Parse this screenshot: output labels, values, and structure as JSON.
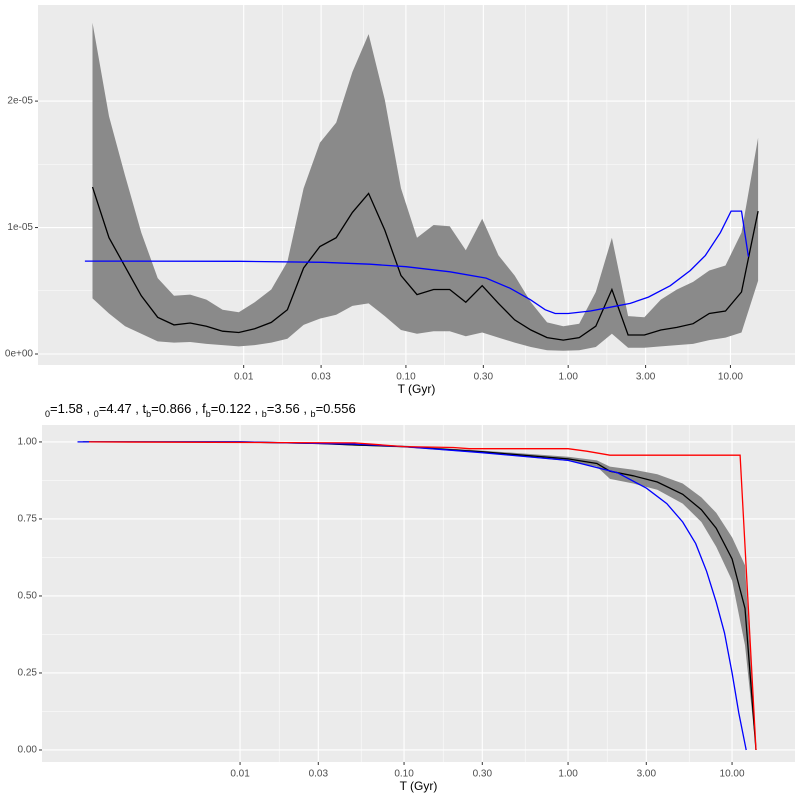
{
  "chart_data": [
    {
      "type": "line",
      "xscale": "log",
      "xlabel": "T (Gyr)",
      "xlim": [
        0.00054,
        25
      ],
      "ylim": [
        -8.7e-07,
        2.76e-05
      ],
      "xticks": [
        0.01,
        0.03,
        {
          "value": 0.1,
          "label": "0.10"
        },
        {
          "value": 0.3,
          "label": "0.30"
        },
        {
          "value": 1,
          "label": "1.00"
        },
        {
          "value": 3,
          "label": "3.00"
        },
        {
          "value": 10,
          "label": "10.00"
        }
      ],
      "yticks": [
        {
          "value": 0,
          "label": "0e+00"
        },
        {
          "value": 1e-05,
          "label": "1e-05"
        },
        {
          "value": 2e-05,
          "label": "2e-05"
        }
      ],
      "grid": true,
      "band": {
        "color": "#8a8a8a",
        "x": [
          0.00117,
          0.00148,
          0.00186,
          0.00234,
          0.00295,
          0.00372,
          0.00468,
          0.00589,
          0.00741,
          0.00933,
          0.0117,
          0.0148,
          0.0186,
          0.0234,
          0.0295,
          0.0372,
          0.0468,
          0.0589,
          0.0741,
          0.0933,
          0.117,
          0.148,
          0.186,
          0.234,
          0.295,
          0.372,
          0.468,
          0.589,
          0.741,
          0.933,
          1.17,
          1.48,
          1.86,
          2.34,
          2.95,
          3.72,
          4.68,
          5.89,
          7.41,
          9.33,
          11.7,
          14.8
        ],
        "lower": [
          4.4e-06,
          3.2e-06,
          2.2e-06,
          1.6e-06,
          1e-06,
          9e-07,
          9.5e-07,
          8e-07,
          7e-07,
          6e-07,
          7e-07,
          9e-07,
          1.2e-06,
          2.3e-06,
          2.8e-06,
          3.1e-06,
          3.8e-06,
          4e-06,
          3e-06,
          1.9e-06,
          1.6e-06,
          1.8e-06,
          1.8e-06,
          1.4e-06,
          1.7e-06,
          1.3e-06,
          9e-07,
          5.5e-07,
          3e-07,
          2.5e-07,
          3e-07,
          5.5e-07,
          1.6e-06,
          5e-07,
          5e-07,
          6e-07,
          7e-07,
          8e-07,
          1.1e-06,
          1.3e-06,
          1.7e-06,
          5.8e-06
        ],
        "upper": [
          2.62e-05,
          1.88e-05,
          1.41e-05,
          9.6e-06,
          6e-06,
          4.6e-06,
          4.7e-06,
          4.3e-06,
          3.5e-06,
          3.3e-06,
          4.1e-06,
          5.1e-06,
          7.3e-06,
          1.31e-05,
          1.67e-05,
          1.83e-05,
          2.23e-05,
          2.53e-05,
          2.01e-05,
          1.31e-05,
          9.2e-06,
          1.02e-05,
          1.01e-05,
          8.2e-06,
          1.07e-05,
          7.8e-06,
          6.2e-06,
          4.1e-06,
          2.5e-06,
          2.2e-06,
          2.4e-06,
          4.9e-06,
          9.2e-06,
          3e-06,
          2.9e-06,
          4.3e-06,
          5.1e-06,
          5.7e-06,
          6.6e-06,
          7e-06,
          9.6e-06,
          1.71e-05
        ]
      },
      "series": [
        {
          "color": "#000000",
          "x": [
            0.00117,
            0.00148,
            0.00186,
            0.00234,
            0.00295,
            0.00372,
            0.00468,
            0.00589,
            0.00741,
            0.00933,
            0.0117,
            0.0148,
            0.0186,
            0.0234,
            0.0295,
            0.0372,
            0.0468,
            0.0589,
            0.0741,
            0.0933,
            0.117,
            0.148,
            0.186,
            0.234,
            0.295,
            0.372,
            0.468,
            0.589,
            0.741,
            0.933,
            1.17,
            1.48,
            1.86,
            2.34,
            2.95,
            3.72,
            4.68,
            5.89,
            7.41,
            9.33,
            11.7,
            14.8
          ],
          "values": [
            1.32e-05,
            9.2e-06,
            6.9e-06,
            4.6e-06,
            2.9e-06,
            2.3e-06,
            2.45e-06,
            2.2e-06,
            1.8e-06,
            1.7e-06,
            2e-06,
            2.5e-06,
            3.5e-06,
            6.8e-06,
            8.5e-06,
            9.2e-06,
            1.12e-05,
            1.27e-05,
            9.8e-06,
            6.2e-06,
            4.7e-06,
            5.1e-06,
            5.1e-06,
            4.1e-06,
            5.4e-06,
            4e-06,
            2.7e-06,
            1.9e-06,
            1.3e-06,
            1.1e-06,
            1.3e-06,
            2.2e-06,
            5.1e-06,
            1.5e-06,
            1.5e-06,
            1.9e-06,
            2.1e-06,
            2.4e-06,
            3.2e-06,
            3.4e-06,
            4.9e-06,
            1.13e-05
          ]
        },
        {
          "color": "#0000ff",
          "x": [
            0.00105,
            0.00944,
            0.0308,
            0.06,
            0.1,
            0.187,
            0.312,
            0.438,
            0.583,
            0.721,
            0.832,
            1,
            1.37,
            1.82,
            2.41,
            3.12,
            4.26,
            5.66,
            7.01,
            8.67,
            10.1,
            11.7,
            12.9
          ],
          "values": [
            7.35e-06,
            7.33e-06,
            7.25e-06,
            7.1e-06,
            6.9e-06,
            6.5e-06,
            6e-06,
            5.2e-06,
            4.3e-06,
            3.5e-06,
            3.2e-06,
            3.2e-06,
            3.4e-06,
            3.7e-06,
            4e-06,
            4.5e-06,
            5.4e-06,
            6.6e-06,
            7.8e-06,
            9.6e-06,
            1.13e-05,
            1.13e-05,
            7.7e-06
          ]
        }
      ]
    },
    {
      "type": "line",
      "xscale": "log",
      "xlabel": "T (Gyr)",
      "xlim": [
        0.00062,
        24.2
      ],
      "ylim": [
        -0.039,
        1.055
      ],
      "xticks": [
        0.01,
        0.03,
        {
          "value": 0.1,
          "label": "0.10"
        },
        {
          "value": 0.3,
          "label": "0.30"
        },
        {
          "value": 1,
          "label": "1.00"
        },
        {
          "value": 3,
          "label": "3.00"
        },
        {
          "value": 10,
          "label": "10.00"
        }
      ],
      "yticks": [
        {
          "value": 0,
          "label": "0.00"
        },
        0.25,
        {
          "value": 0.5,
          "label": "0.50"
        },
        0.75,
        {
          "value": 1,
          "label": "1.00"
        }
      ],
      "grid": true,
      "subtitle": {
        "equals": "=",
        "separator": " , ",
        "params": [
          {
            "sub": "0",
            "value": 1.58
          },
          {
            "sub": "0",
            "value": 4.47
          },
          {
            "symbol": "t",
            "sub": "b",
            "value": 0.866
          },
          {
            "symbol": "f",
            "sub": "b",
            "value": 0.122
          },
          {
            "sub": "b",
            "value": 3.56
          },
          {
            "sub": "b",
            "value": 0.556
          }
        ]
      },
      "band": {
        "color": "#8a8a8a",
        "x": [
          0.0011,
          0.003,
          0.01,
          0.03,
          0.05,
          0.1,
          0.3,
          1,
          1.5,
          1.8,
          2.5,
          3.5,
          5,
          6.5,
          8,
          10,
          12,
          14
        ],
        "lower": [
          1,
          1,
          1,
          0.994,
          0.988,
          0.982,
          0.964,
          0.938,
          0.92,
          0.88,
          0.865,
          0.845,
          0.8,
          0.74,
          0.66,
          0.55,
          0.34,
          0
        ],
        "upper": [
          1,
          1,
          1,
          0.996,
          0.992,
          0.988,
          0.972,
          0.952,
          0.94,
          0.92,
          0.91,
          0.895,
          0.865,
          0.82,
          0.77,
          0.69,
          0.6,
          0
        ]
      },
      "series": [
        {
          "color": "#000000",
          "x": [
            0.0011,
            0.003,
            0.01,
            0.03,
            0.05,
            0.1,
            0.3,
            1,
            1.5,
            1.8,
            2.5,
            3.5,
            5,
            6.5,
            8,
            10,
            12,
            14
          ],
          "values": [
            1,
            1,
            1,
            0.995,
            0.99,
            0.985,
            0.968,
            0.945,
            0.93,
            0.905,
            0.89,
            0.87,
            0.83,
            0.78,
            0.72,
            0.62,
            0.46,
            0
          ]
        },
        {
          "color": "#0000ff",
          "x": [
            0.00102,
            0.01,
            0.05,
            0.1,
            0.3,
            1,
            2,
            3,
            4,
            5,
            6,
            7,
            8,
            9,
            10,
            11,
            12.2
          ],
          "values": [
            1,
            1,
            0.993,
            0.985,
            0.965,
            0.94,
            0.9,
            0.85,
            0.8,
            0.74,
            0.67,
            0.58,
            0.48,
            0.38,
            0.25,
            0.12,
            0
          ]
        },
        {
          "color": "#ff0000",
          "x": [
            0.0012,
            0.05,
            0.1,
            0.2,
            0.25,
            1,
            1.3,
            1.8,
            11.2,
            14
          ],
          "values": [
            1,
            0.997,
            0.985,
            0.982,
            0.978,
            0.978,
            0.97,
            0.957,
            0.957,
            0
          ]
        }
      ]
    }
  ]
}
